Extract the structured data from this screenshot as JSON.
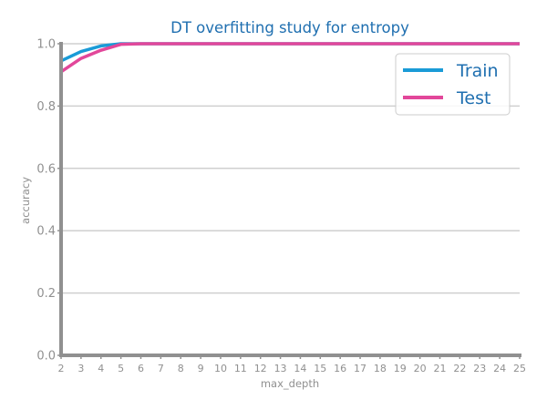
{
  "chart_data": {
    "type": "line",
    "title": "DT overfitting study for entropy",
    "xlabel": "max_depth",
    "ylabel": "accuracy",
    "x": [
      2,
      3,
      4,
      5,
      6,
      7,
      8,
      9,
      10,
      11,
      12,
      13,
      14,
      15,
      16,
      17,
      18,
      19,
      20,
      21,
      22,
      23,
      24,
      25
    ],
    "x_tick_labels": [
      "2",
      "3",
      "4",
      "5",
      "6",
      "7",
      "8",
      "9",
      "10",
      "11",
      "12",
      "13",
      "14",
      "15",
      "16",
      "17",
      "18",
      "19",
      "20",
      "21",
      "22",
      "23",
      "24",
      "25"
    ],
    "ylim": [
      0,
      1
    ],
    "y_ticks": [
      0.0,
      0.2,
      0.4,
      0.6,
      0.8,
      1.0
    ],
    "y_tick_labels": [
      "0.0",
      "0.2",
      "0.4",
      "0.6",
      "0.8",
      "1.0"
    ],
    "grid": "horizontal",
    "legend_position": "top-right",
    "series": [
      {
        "name": "Train",
        "color": "#1a9bd7",
        "values": [
          0.945,
          0.975,
          0.993,
          1.0,
          1.0,
          1.0,
          1.0,
          1.0,
          1.0,
          1.0,
          1.0,
          1.0,
          1.0,
          1.0,
          1.0,
          1.0,
          1.0,
          1.0,
          1.0,
          1.0,
          1.0,
          1.0,
          1.0,
          1.0
        ]
      },
      {
        "name": "Test",
        "color": "#e2479a",
        "values": [
          0.91,
          0.953,
          0.979,
          0.998,
          1.0,
          1.0,
          1.0,
          1.0,
          1.0,
          1.0,
          1.0,
          1.0,
          1.0,
          1.0,
          1.0,
          1.0,
          1.0,
          1.0,
          1.0,
          1.0,
          1.0,
          1.0,
          1.0,
          1.0
        ]
      }
    ],
    "colors": {
      "title": "#1f6fb0",
      "axis": "#909090",
      "tick_text": "#909090",
      "grid": "#cfcfcf",
      "legend_text": "#1f6fb0",
      "legend_border": "#cccccc"
    }
  }
}
